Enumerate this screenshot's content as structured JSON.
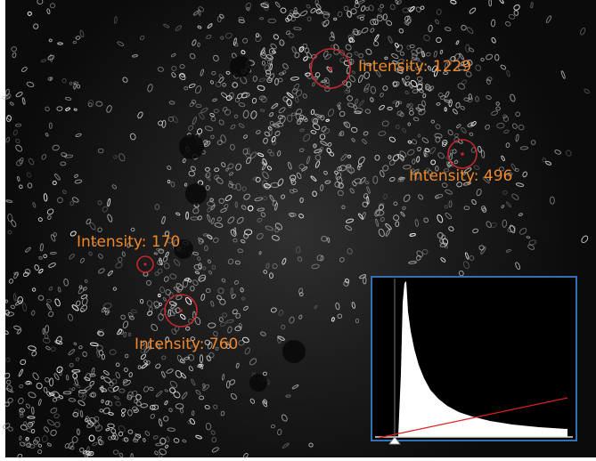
{
  "annotations": [
    {
      "label": "Intensity: 1229"
    },
    {
      "label": "Intensity: 496"
    },
    {
      "label": "Intensity: 170"
    },
    {
      "label": "Intensity: 760"
    }
  ]
}
